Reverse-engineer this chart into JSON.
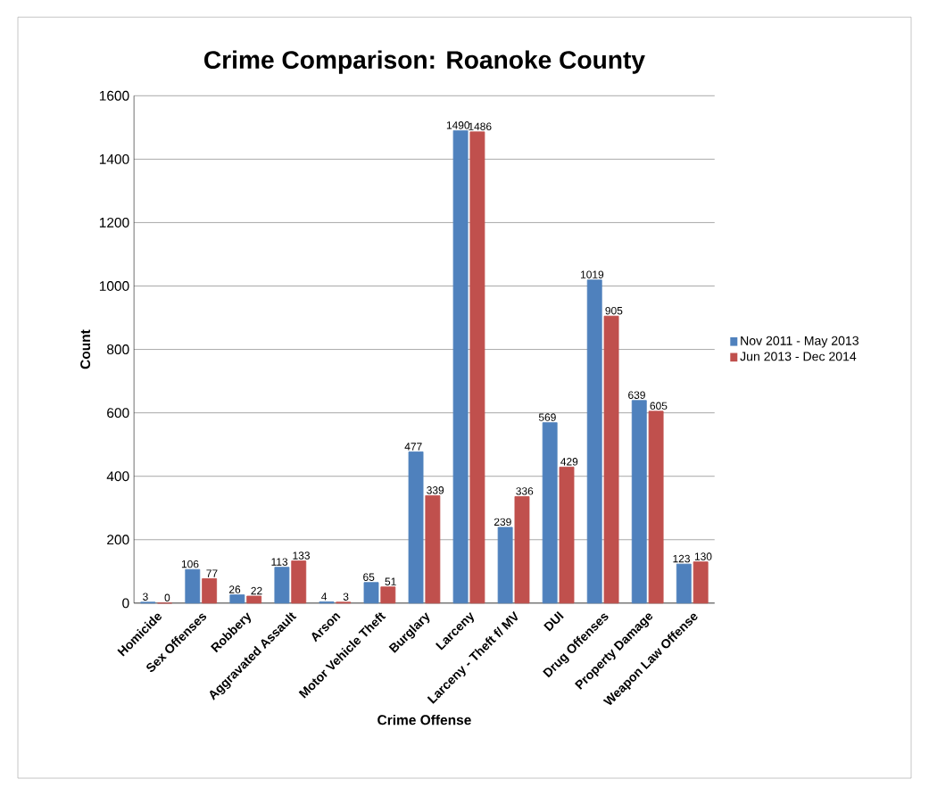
{
  "chart_data": {
    "type": "bar",
    "title": "Crime Comparison: Roanoke County",
    "xlabel": "Crime Offense",
    "ylabel": "Count",
    "categories": [
      "Homicide",
      "Sex Offenses",
      "Robbery",
      "Aggravated Assault",
      "Arson",
      "Motor Vehicle Theft",
      "Burglary",
      "Larceny",
      "Larceny - Theft f/ MV",
      "DUI",
      "Drug Offenses",
      "Property Damage",
      "Weapon Law Offense"
    ],
    "series": [
      {
        "name": "Nov 2011 - May 2013",
        "color": "#4f81bd",
        "values": [
          3,
          106,
          26,
          113,
          4,
          65,
          477,
          1490,
          239,
          569,
          1019,
          639,
          123
        ]
      },
      {
        "name": "Jun 2013 - Dec 2014",
        "color": "#c0504d",
        "values": [
          0,
          77,
          22,
          133,
          3,
          51,
          339,
          1486,
          336,
          429,
          905,
          605,
          130
        ]
      }
    ],
    "ylim": [
      0,
      1600
    ],
    "yticks": [
      0,
      200,
      400,
      600,
      800,
      1000,
      1200,
      1400,
      1600
    ],
    "grid": "y",
    "legend": "right",
    "data_labels": true
  }
}
